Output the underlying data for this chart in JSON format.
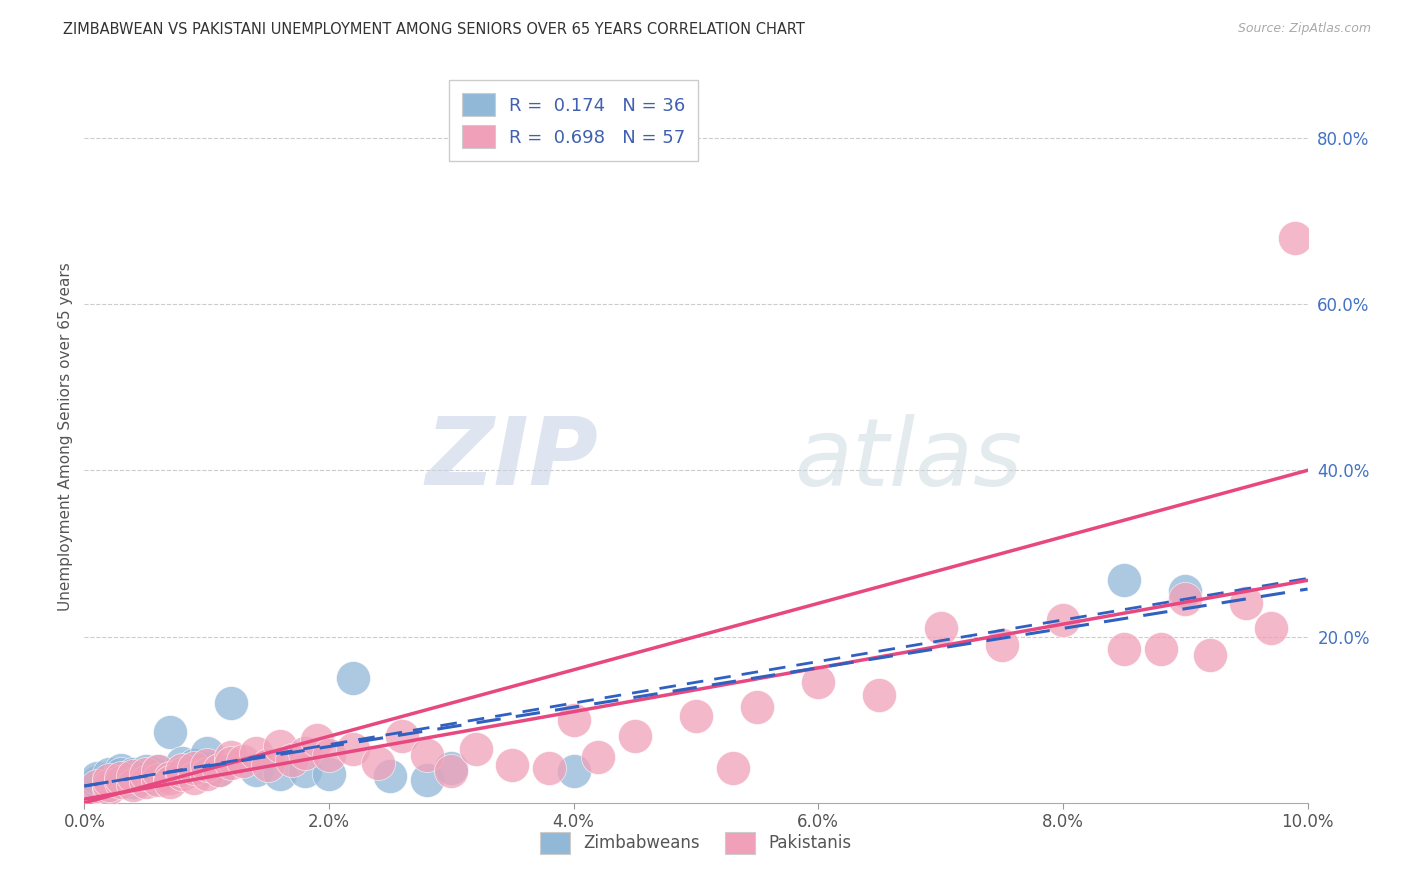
{
  "title": "ZIMBABWEAN VS PAKISTANI UNEMPLOYMENT AMONG SENIORS OVER 65 YEARS CORRELATION CHART",
  "source": "Source: ZipAtlas.com",
  "ylabel": "Unemployment Among Seniors over 65 years",
  "xlim": [
    0.0,
    0.1
  ],
  "ylim": [
    0.0,
    0.88
  ],
  "xtick_labels": [
    "0.0%",
    "2.0%",
    "4.0%",
    "6.0%",
    "8.0%",
    "10.0%"
  ],
  "xtick_vals": [
    0.0,
    0.02,
    0.04,
    0.06,
    0.08,
    0.1
  ],
  "ytick_labels": [
    "20.0%",
    "40.0%",
    "60.0%",
    "80.0%"
  ],
  "ytick_vals": [
    0.2,
    0.4,
    0.6,
    0.8
  ],
  "zimbabwe_color": "#92b8d8",
  "pakistan_color": "#f0a0b8",
  "zimbabwe_line_color": "#3060c0",
  "pakistan_line_color": "#e84880",
  "legend_R_zimbabwe": "0.174",
  "legend_N_zimbabwe": "36",
  "legend_R_pakistan": "0.698",
  "legend_N_pakistan": "57",
  "watermark_zip": "ZIP",
  "watermark_atlas": "atlas",
  "zimbabwe_x": [
    0.001,
    0.001,
    0.001,
    0.002,
    0.002,
    0.002,
    0.002,
    0.003,
    0.003,
    0.003,
    0.003,
    0.004,
    0.004,
    0.004,
    0.005,
    0.005,
    0.006,
    0.006,
    0.007,
    0.008,
    0.009,
    0.01,
    0.01,
    0.011,
    0.012,
    0.014,
    0.016,
    0.018,
    0.02,
    0.022,
    0.025,
    0.028,
    0.03,
    0.04,
    0.085,
    0.09
  ],
  "zimbabwe_y": [
    0.02,
    0.025,
    0.03,
    0.02,
    0.025,
    0.03,
    0.035,
    0.025,
    0.03,
    0.04,
    0.035,
    0.025,
    0.03,
    0.035,
    0.03,
    0.038,
    0.032,
    0.038,
    0.085,
    0.048,
    0.045,
    0.042,
    0.06,
    0.04,
    0.12,
    0.04,
    0.035,
    0.038,
    0.035,
    0.15,
    0.032,
    0.028,
    0.042,
    0.038,
    0.268,
    0.255
  ],
  "pakistan_x": [
    0.001,
    0.002,
    0.002,
    0.002,
    0.003,
    0.003,
    0.004,
    0.004,
    0.005,
    0.005,
    0.006,
    0.006,
    0.007,
    0.007,
    0.008,
    0.008,
    0.009,
    0.009,
    0.01,
    0.01,
    0.011,
    0.012,
    0.012,
    0.013,
    0.014,
    0.015,
    0.016,
    0.017,
    0.018,
    0.019,
    0.02,
    0.022,
    0.024,
    0.026,
    0.028,
    0.03,
    0.032,
    0.035,
    0.038,
    0.04,
    0.042,
    0.045,
    0.05,
    0.053,
    0.055,
    0.06,
    0.065,
    0.07,
    0.075,
    0.08,
    0.085,
    0.088,
    0.09,
    0.092,
    0.095,
    0.097,
    0.099
  ],
  "pakistan_y": [
    0.02,
    0.018,
    0.022,
    0.028,
    0.025,
    0.03,
    0.022,
    0.032,
    0.025,
    0.035,
    0.028,
    0.038,
    0.03,
    0.025,
    0.035,
    0.04,
    0.03,
    0.042,
    0.035,
    0.045,
    0.04,
    0.055,
    0.048,
    0.05,
    0.06,
    0.045,
    0.068,
    0.052,
    0.06,
    0.075,
    0.058,
    0.065,
    0.048,
    0.08,
    0.058,
    0.038,
    0.065,
    0.045,
    0.042,
    0.1,
    0.055,
    0.08,
    0.105,
    0.042,
    0.115,
    0.145,
    0.13,
    0.21,
    0.19,
    0.22,
    0.185,
    0.185,
    0.245,
    0.178,
    0.24,
    0.21,
    0.68
  ],
  "pakistan_line_x0": 0.0,
  "pakistan_line_y0": 0.0,
  "pakistan_line_x1": 0.1,
  "pakistan_line_y1": 0.4,
  "zimbabwe_line_x0": 0.0,
  "zimbabwe_line_y0": 0.02,
  "zimbabwe_line_x1": 0.1,
  "zimbabwe_line_y1": 0.27
}
